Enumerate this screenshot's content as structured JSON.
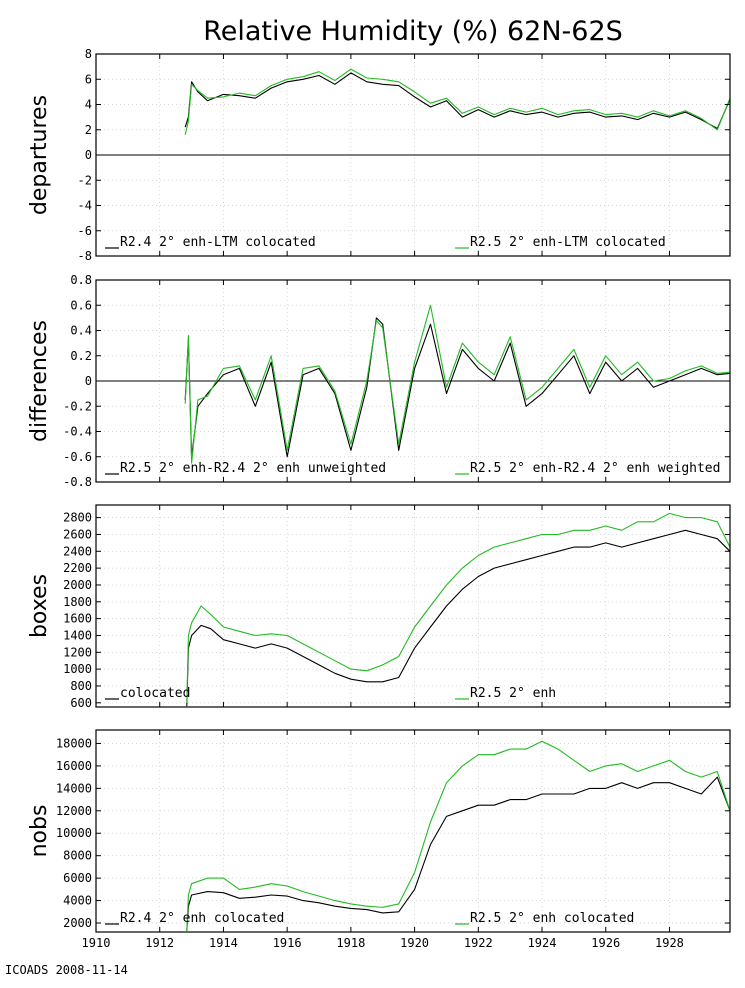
{
  "title": "Relative Humidity (%) 62N-62S",
  "footer": "ICOADS 2008-11-14",
  "colors": {
    "black_series": "#000000",
    "green_series": "#22bb22",
    "axis": "#000000",
    "grid": "#c8c8c8"
  },
  "x_ticks": [
    "1910",
    "1912",
    "1914",
    "1916",
    "1918",
    "1920",
    "1922",
    "1924",
    "1926",
    "1928"
  ],
  "chart_data": [
    {
      "type": "line",
      "ylabel": "departures",
      "xlim": [
        1910,
        1929.9
      ],
      "ylim": [
        -8,
        8
      ],
      "yticks": [
        8,
        6,
        4,
        2,
        0,
        -2,
        -4,
        -6,
        -8
      ],
      "zero_line": true,
      "grid": true,
      "series": [
        {
          "name": "R2.4 2° enh-LTM colocated",
          "color": "#000000",
          "x": [
            1912.8,
            1912.9,
            1913.0,
            1913.2,
            1913.5,
            1914.0,
            1914.5,
            1915.0,
            1915.5,
            1916.0,
            1916.5,
            1917.0,
            1917.5,
            1918.0,
            1918.5,
            1919.0,
            1919.5,
            1920.0,
            1920.5,
            1921.0,
            1921.5,
            1922.0,
            1922.5,
            1923.0,
            1923.5,
            1924.0,
            1924.5,
            1925.0,
            1925.5,
            1926.0,
            1926.5,
            1927.0,
            1927.5,
            1928.0,
            1928.5,
            1929.0,
            1929.5,
            1929.9
          ],
          "y": [
            2.2,
            3.0,
            5.8,
            5.0,
            4.3,
            4.8,
            4.7,
            4.5,
            5.3,
            5.8,
            6.0,
            6.3,
            5.6,
            6.5,
            5.8,
            5.6,
            5.5,
            4.6,
            3.8,
            4.3,
            3.0,
            3.6,
            3.0,
            3.5,
            3.2,
            3.4,
            3.0,
            3.3,
            3.4,
            3.0,
            3.1,
            2.8,
            3.3,
            3.0,
            3.4,
            2.8,
            2.1,
            4.4
          ]
        },
        {
          "name": "R2.5 2° enh-LTM colocated",
          "color": "#22bb22",
          "x": [
            1912.8,
            1912.9,
            1913.0,
            1913.2,
            1913.5,
            1914.0,
            1914.5,
            1915.0,
            1915.5,
            1916.0,
            1916.5,
            1917.0,
            1917.5,
            1918.0,
            1918.5,
            1919.0,
            1919.5,
            1920.0,
            1920.5,
            1921.0,
            1921.5,
            1922.0,
            1922.5,
            1923.0,
            1923.5,
            1924.0,
            1924.5,
            1925.0,
            1925.5,
            1926.0,
            1926.5,
            1927.0,
            1927.5,
            1928.0,
            1928.5,
            1929.0,
            1929.5,
            1929.9
          ],
          "y": [
            1.6,
            2.7,
            5.6,
            5.1,
            4.5,
            4.6,
            4.9,
            4.7,
            5.5,
            6.0,
            6.2,
            6.6,
            5.9,
            6.8,
            6.1,
            6.0,
            5.8,
            5.0,
            4.1,
            4.5,
            3.3,
            3.8,
            3.2,
            3.7,
            3.4,
            3.7,
            3.2,
            3.5,
            3.6,
            3.2,
            3.3,
            3.0,
            3.5,
            3.1,
            3.5,
            2.9,
            2.0,
            4.5
          ]
        }
      ]
    },
    {
      "type": "line",
      "ylabel": "differences",
      "xlim": [
        1910,
        1929.9
      ],
      "ylim": [
        -0.8,
        0.8
      ],
      "yticks": [
        0.8,
        0.6,
        0.4,
        0.2,
        0,
        -0.2,
        -0.4,
        -0.6,
        -0.8
      ],
      "zero_line": true,
      "grid": true,
      "series": [
        {
          "name": "R2.5 2° enh-R2.4 2° enh unweighted",
          "color": "#000000",
          "x": [
            1912.8,
            1912.9,
            1913.0,
            1913.2,
            1913.5,
            1914.0,
            1914.5,
            1915.0,
            1915.5,
            1916.0,
            1916.5,
            1917.0,
            1917.5,
            1918.0,
            1918.5,
            1918.8,
            1919.0,
            1919.5,
            1920.0,
            1920.5,
            1921.0,
            1921.5,
            1922.0,
            1922.5,
            1923.0,
            1923.5,
            1924.0,
            1924.5,
            1925.0,
            1925.5,
            1926.0,
            1926.5,
            1927.0,
            1927.5,
            1928.0,
            1928.5,
            1929.0,
            1929.5,
            1929.9
          ],
          "y": [
            -0.15,
            0.33,
            -0.6,
            -0.2,
            -0.1,
            0.05,
            0.1,
            -0.2,
            0.15,
            -0.6,
            0.05,
            0.1,
            -0.1,
            -0.55,
            -0.05,
            0.5,
            0.45,
            -0.55,
            0.1,
            0.45,
            -0.1,
            0.25,
            0.1,
            0.0,
            0.3,
            -0.2,
            -0.1,
            0.05,
            0.2,
            -0.1,
            0.15,
            0.0,
            0.1,
            -0.05,
            0.0,
            0.05,
            0.1,
            0.05,
            0.06
          ]
        },
        {
          "name": "R2.5 2° enh-R2.4 2° enh weighted",
          "color": "#22bb22",
          "x": [
            1912.8,
            1912.9,
            1913.0,
            1913.2,
            1913.5,
            1914.0,
            1914.5,
            1915.0,
            1915.5,
            1916.0,
            1916.5,
            1917.0,
            1917.5,
            1918.0,
            1918.5,
            1918.8,
            1919.0,
            1919.5,
            1920.0,
            1920.5,
            1921.0,
            1921.5,
            1922.0,
            1922.5,
            1923.0,
            1923.5,
            1924.0,
            1924.5,
            1925.0,
            1925.5,
            1926.0,
            1926.5,
            1927.0,
            1927.5,
            1928.0,
            1928.5,
            1929.0,
            1929.5,
            1929.9
          ],
          "y": [
            -0.18,
            0.36,
            -0.65,
            -0.15,
            -0.12,
            0.1,
            0.12,
            -0.15,
            0.2,
            -0.55,
            0.1,
            0.12,
            -0.08,
            -0.5,
            0.0,
            0.48,
            0.42,
            -0.5,
            0.15,
            0.6,
            -0.05,
            0.3,
            0.15,
            0.05,
            0.35,
            -0.15,
            -0.05,
            0.1,
            0.25,
            -0.05,
            0.2,
            0.05,
            0.15,
            0.0,
            0.02,
            0.08,
            0.12,
            0.06,
            0.07
          ]
        }
      ]
    },
    {
      "type": "line",
      "ylabel": "boxes",
      "xlim": [
        1910,
        1929.9
      ],
      "ylim": [
        550,
        2950
      ],
      "yticks": [
        2800,
        2600,
        2400,
        2200,
        2000,
        1800,
        1600,
        1400,
        1200,
        1000,
        800,
        600
      ],
      "zero_line": false,
      "grid": true,
      "series": [
        {
          "name": "colocated",
          "color": "#000000",
          "x": [
            1912.85,
            1912.9,
            1913.0,
            1913.3,
            1913.6,
            1914.0,
            1914.5,
            1915.0,
            1915.5,
            1916.0,
            1916.5,
            1917.0,
            1917.5,
            1918.0,
            1918.5,
            1919.0,
            1919.5,
            1920.0,
            1920.5,
            1921.0,
            1921.5,
            1922.0,
            1922.5,
            1923.0,
            1923.5,
            1924.0,
            1924.5,
            1925.0,
            1925.5,
            1926.0,
            1926.5,
            1927.0,
            1927.5,
            1928.0,
            1928.5,
            1929.0,
            1929.5,
            1929.9
          ],
          "y": [
            560,
            1250,
            1400,
            1520,
            1480,
            1350,
            1300,
            1250,
            1300,
            1250,
            1150,
            1050,
            950,
            880,
            850,
            850,
            900,
            1250,
            1500,
            1750,
            1950,
            2100,
            2200,
            2250,
            2300,
            2350,
            2400,
            2450,
            2450,
            2500,
            2450,
            2500,
            2550,
            2600,
            2650,
            2600,
            2550,
            2400
          ]
        },
        {
          "name": "R2.5 2° enh",
          "color": "#22bb22",
          "x": [
            1912.85,
            1912.9,
            1913.0,
            1913.3,
            1913.6,
            1914.0,
            1914.5,
            1915.0,
            1915.5,
            1916.0,
            1916.5,
            1917.0,
            1917.5,
            1918.0,
            1918.5,
            1919.0,
            1919.5,
            1920.0,
            1920.5,
            1921.0,
            1921.5,
            1922.0,
            1922.5,
            1923.0,
            1923.5,
            1924.0,
            1924.5,
            1925.0,
            1925.5,
            1926.0,
            1926.5,
            1927.0,
            1927.5,
            1928.0,
            1928.5,
            1929.0,
            1929.5,
            1929.9
          ],
          "y": [
            600,
            1400,
            1550,
            1750,
            1650,
            1500,
            1450,
            1400,
            1420,
            1400,
            1300,
            1200,
            1100,
            1000,
            980,
            1050,
            1150,
            1500,
            1750,
            2000,
            2200,
            2350,
            2450,
            2500,
            2550,
            2600,
            2600,
            2650,
            2650,
            2700,
            2650,
            2750,
            2750,
            2850,
            2800,
            2800,
            2750,
            2450
          ]
        }
      ]
    },
    {
      "type": "line",
      "ylabel": "nobs",
      "xlim": [
        1910,
        1929.9
      ],
      "ylim": [
        1200,
        19200
      ],
      "yticks": [
        18000,
        16000,
        14000,
        12000,
        10000,
        8000,
        6000,
        4000,
        2000
      ],
      "zero_line": false,
      "grid": true,
      "series": [
        {
          "name": "R2.4 2° enh colocated",
          "color": "#000000",
          "x": [
            1912.85,
            1912.9,
            1913.0,
            1913.5,
            1914.0,
            1914.5,
            1915.0,
            1915.5,
            1916.0,
            1916.5,
            1917.0,
            1917.5,
            1918.0,
            1918.5,
            1919.0,
            1919.5,
            1920.0,
            1920.5,
            1921.0,
            1921.5,
            1922.0,
            1922.5,
            1923.0,
            1923.5,
            1924.0,
            1924.5,
            1925.0,
            1925.5,
            1926.0,
            1926.5,
            1927.0,
            1927.5,
            1928.0,
            1928.5,
            1929.0,
            1929.5,
            1929.9
          ],
          "y": [
            1300,
            3500,
            4500,
            4800,
            4700,
            4200,
            4300,
            4500,
            4400,
            4000,
            3800,
            3500,
            3300,
            3200,
            2900,
            3000,
            5000,
            9000,
            11500,
            12000,
            12500,
            12500,
            13000,
            13000,
            13500,
            13500,
            13500,
            14000,
            14000,
            14500,
            14000,
            14500,
            14500,
            14000,
            13500,
            15000,
            12000
          ]
        },
        {
          "name": "R2.5 2° enh colocated",
          "color": "#22bb22",
          "x": [
            1912.85,
            1912.9,
            1913.0,
            1913.5,
            1914.0,
            1914.5,
            1915.0,
            1915.5,
            1916.0,
            1916.5,
            1917.0,
            1917.5,
            1918.0,
            1918.5,
            1919.0,
            1919.5,
            1920.0,
            1920.5,
            1921.0,
            1921.5,
            1922.0,
            1922.5,
            1923.0,
            1923.5,
            1924.0,
            1924.5,
            1925.0,
            1925.5,
            1926.0,
            1926.5,
            1927.0,
            1927.5,
            1928.0,
            1928.5,
            1929.0,
            1929.5,
            1929.9
          ],
          "y": [
            1300,
            4500,
            5500,
            6000,
            6000,
            5000,
            5200,
            5500,
            5300,
            4800,
            4400,
            4000,
            3700,
            3500,
            3400,
            3700,
            6500,
            11000,
            14500,
            16000,
            17000,
            17000,
            17500,
            17500,
            18200,
            17500,
            16500,
            15500,
            16000,
            16200,
            15500,
            16000,
            16500,
            15500,
            15000,
            15500,
            12000
          ]
        }
      ]
    }
  ]
}
